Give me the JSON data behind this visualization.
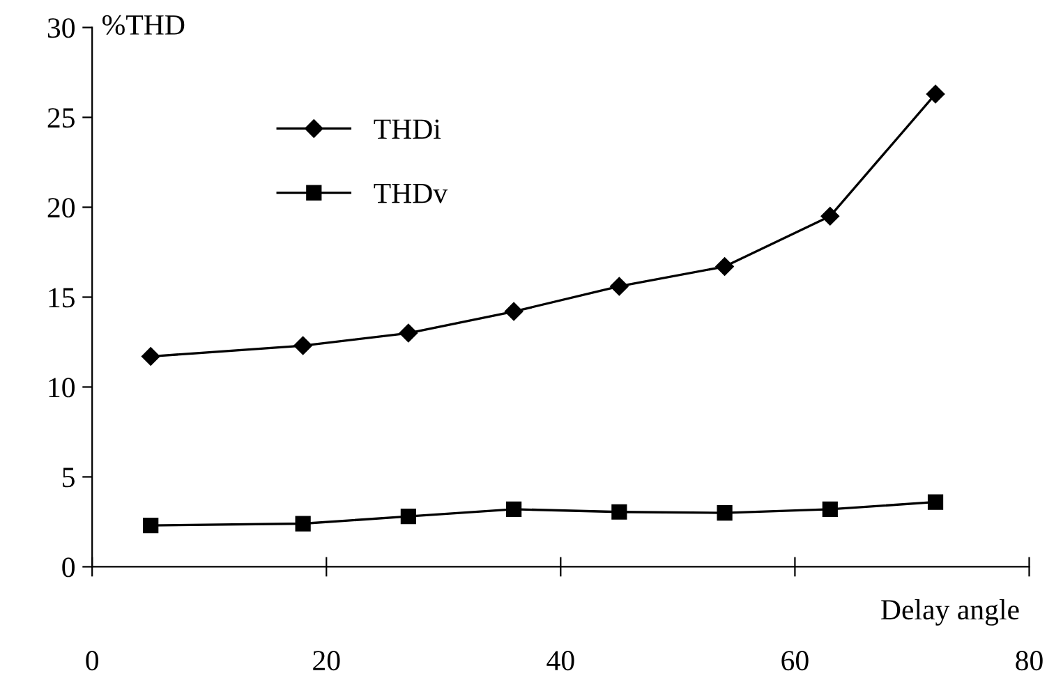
{
  "chart_data": {
    "type": "line",
    "ylabel": "%THD",
    "xlabel": "Delay angle",
    "x": [
      5,
      18,
      27,
      36,
      45,
      54,
      63,
      72
    ],
    "series": [
      {
        "name": "THDi",
        "color": "#000000",
        "marker": "diamond",
        "values": [
          11.7,
          12.3,
          13.0,
          14.2,
          15.6,
          16.7,
          19.5,
          26.3
        ]
      },
      {
        "name": "THDv",
        "color": "#000000",
        "marker": "square",
        "values": [
          2.3,
          2.4,
          2.8,
          3.2,
          3.05,
          3.0,
          3.2,
          3.6
        ]
      }
    ],
    "xlim": [
      0,
      80
    ],
    "xticks": [
      0,
      20,
      40,
      60,
      80
    ],
    "ylim": [
      0,
      30
    ],
    "yticks": [
      0,
      5,
      10,
      15,
      20,
      25,
      30
    ],
    "grid": false,
    "legend": "top left",
    "line_style": "solid"
  }
}
